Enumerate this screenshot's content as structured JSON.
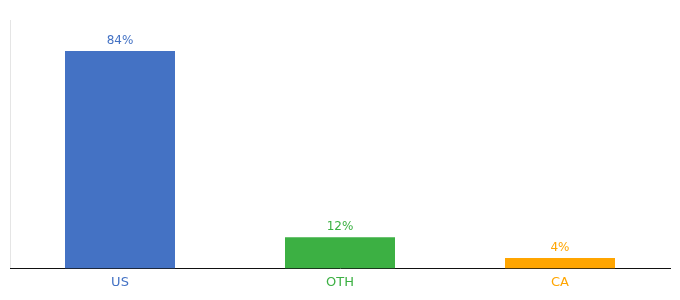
{
  "chart_data": {
    "type": "bar",
    "categories": [
      "US",
      "OTH",
      "CA"
    ],
    "values": [
      84,
      12,
      4
    ],
    "value_labels": [
      "84%",
      "12%",
      "4%"
    ],
    "colors": [
      "#4472C4",
      "#3CB043",
      "#FFA500"
    ],
    "ylim": [
      0,
      96
    ],
    "grid": false,
    "tick_labels": "x",
    "data_labels": true
  }
}
